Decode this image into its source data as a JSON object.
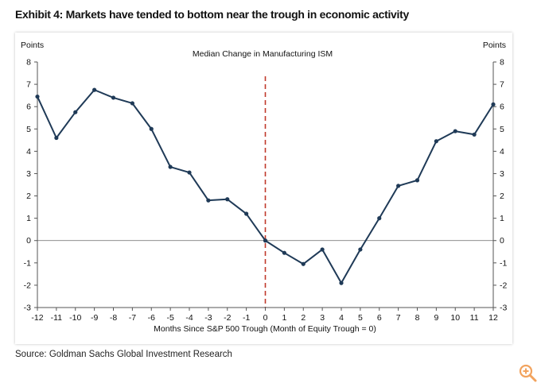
{
  "exhibit_title": "Exhibit 4: Markets have tended to bottom near the trough in economic activity",
  "source": "Source: Goldman Sachs Global Investment Research",
  "colors": {
    "line": "#1f3a57",
    "trough_marker": "#c0392b",
    "axis": "#555555"
  },
  "chart_data": {
    "type": "line",
    "title": "Median Change in Manufacturing ISM",
    "xlabel": "Months Since S&P 500 Trough (Month of Equity Trough = 0)",
    "ylabel_left": "Points",
    "ylabel_right": "Points",
    "xlim": [
      -12,
      12
    ],
    "ylim": [
      -3,
      8
    ],
    "x_ticks": [
      -12,
      -11,
      -10,
      -9,
      -8,
      -7,
      -6,
      -5,
      -4,
      -3,
      -2,
      -1,
      0,
      1,
      2,
      3,
      4,
      5,
      6,
      7,
      8,
      9,
      10,
      11,
      12
    ],
    "x_tick_labels": [
      "-12",
      "-11",
      "-10",
      "-9",
      "-8",
      "-7",
      "-6",
      "-5",
      "-4",
      "-3",
      "-2",
      "-1",
      "0",
      "1",
      "2",
      "3",
      "4",
      "5",
      "6",
      "7",
      "8",
      "9",
      "10",
      "11",
      "12"
    ],
    "y_ticks": [
      -3,
      -2,
      -1,
      0,
      1,
      2,
      3,
      4,
      5,
      6,
      7,
      8
    ],
    "y_tick_labels": [
      "-3",
      "-2",
      "-1",
      "0",
      "1",
      "2",
      "3",
      "4",
      "5",
      "6",
      "7",
      "8"
    ],
    "vertical_marker_x": 0,
    "series": [
      {
        "name": "Median Change in Manufacturing ISM",
        "x": [
          -12,
          -11,
          -10,
          -9,
          -8,
          -7,
          -6,
          -5,
          -4,
          -3,
          -2,
          -1,
          0,
          1,
          2,
          3,
          4,
          5,
          6,
          7,
          8,
          9,
          10,
          11,
          12
        ],
        "values": [
          6.45,
          4.6,
          5.75,
          6.75,
          6.4,
          6.15,
          5.0,
          3.3,
          3.05,
          1.8,
          1.85,
          1.2,
          0.0,
          -0.55,
          -1.05,
          -0.4,
          -1.9,
          -0.4,
          1.0,
          2.45,
          2.7,
          4.45,
          4.9,
          4.75,
          6.1
        ]
      }
    ]
  },
  "zoom_icon": "zoom-in-icon"
}
